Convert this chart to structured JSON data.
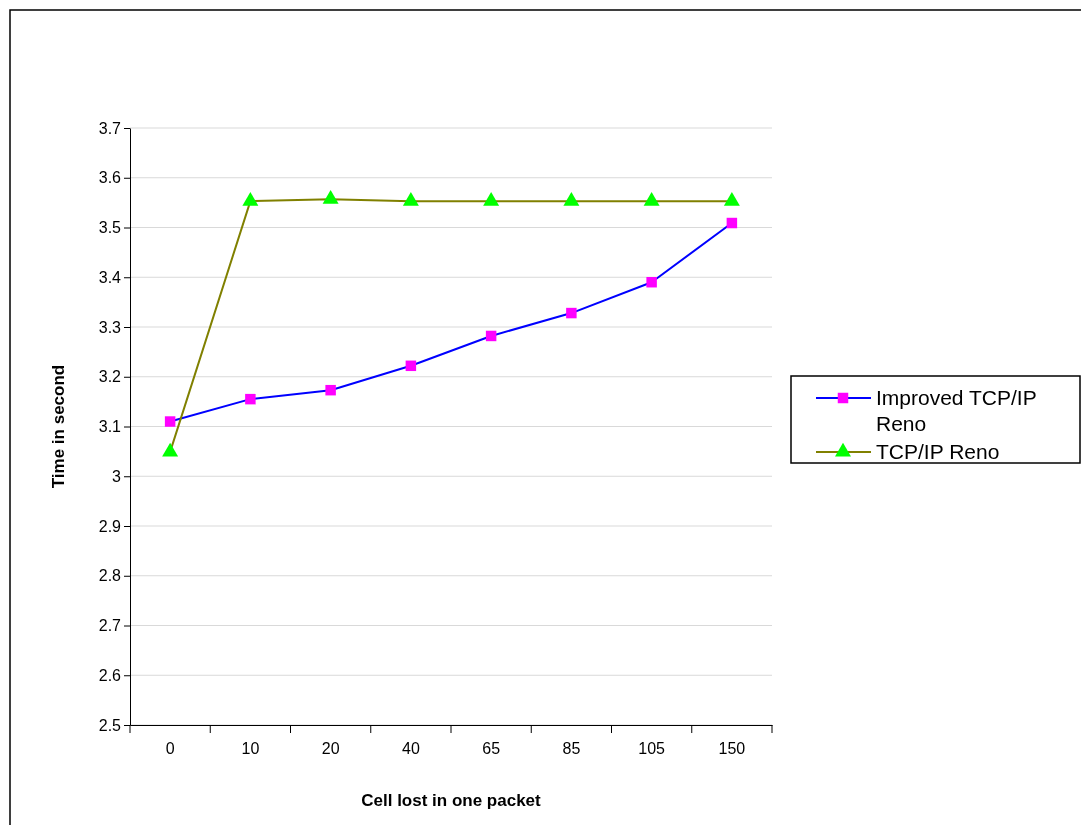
{
  "chart_data": {
    "type": "line",
    "xlabel": "Cell lost in one packet",
    "ylabel": "Time in second",
    "categories": [
      "0",
      "10",
      "20",
      "40",
      "65",
      "85",
      "105",
      "150"
    ],
    "ylim": [
      2.5,
      3.7
    ],
    "yticks": [
      2.5,
      2.6,
      2.7,
      2.8,
      2.9,
      3,
      3.1,
      3.2,
      3.3,
      3.4,
      3.5,
      3.6,
      3.7
    ],
    "grid": "y",
    "legend": "right",
    "series": [
      {
        "name": "Improved TCP/IP Reno",
        "color": "#0000ff",
        "marker": "square",
        "values": [
          3.11,
          3.155,
          3.173,
          3.222,
          3.282,
          3.328,
          3.39,
          3.509
        ]
      },
      {
        "name": "TCP/IP Reno",
        "color": "#808000",
        "marker": "triangle",
        "values": [
          3.049,
          3.553,
          3.557,
          3.553,
          3.553,
          3.553,
          3.553,
          3.553
        ]
      }
    ]
  }
}
